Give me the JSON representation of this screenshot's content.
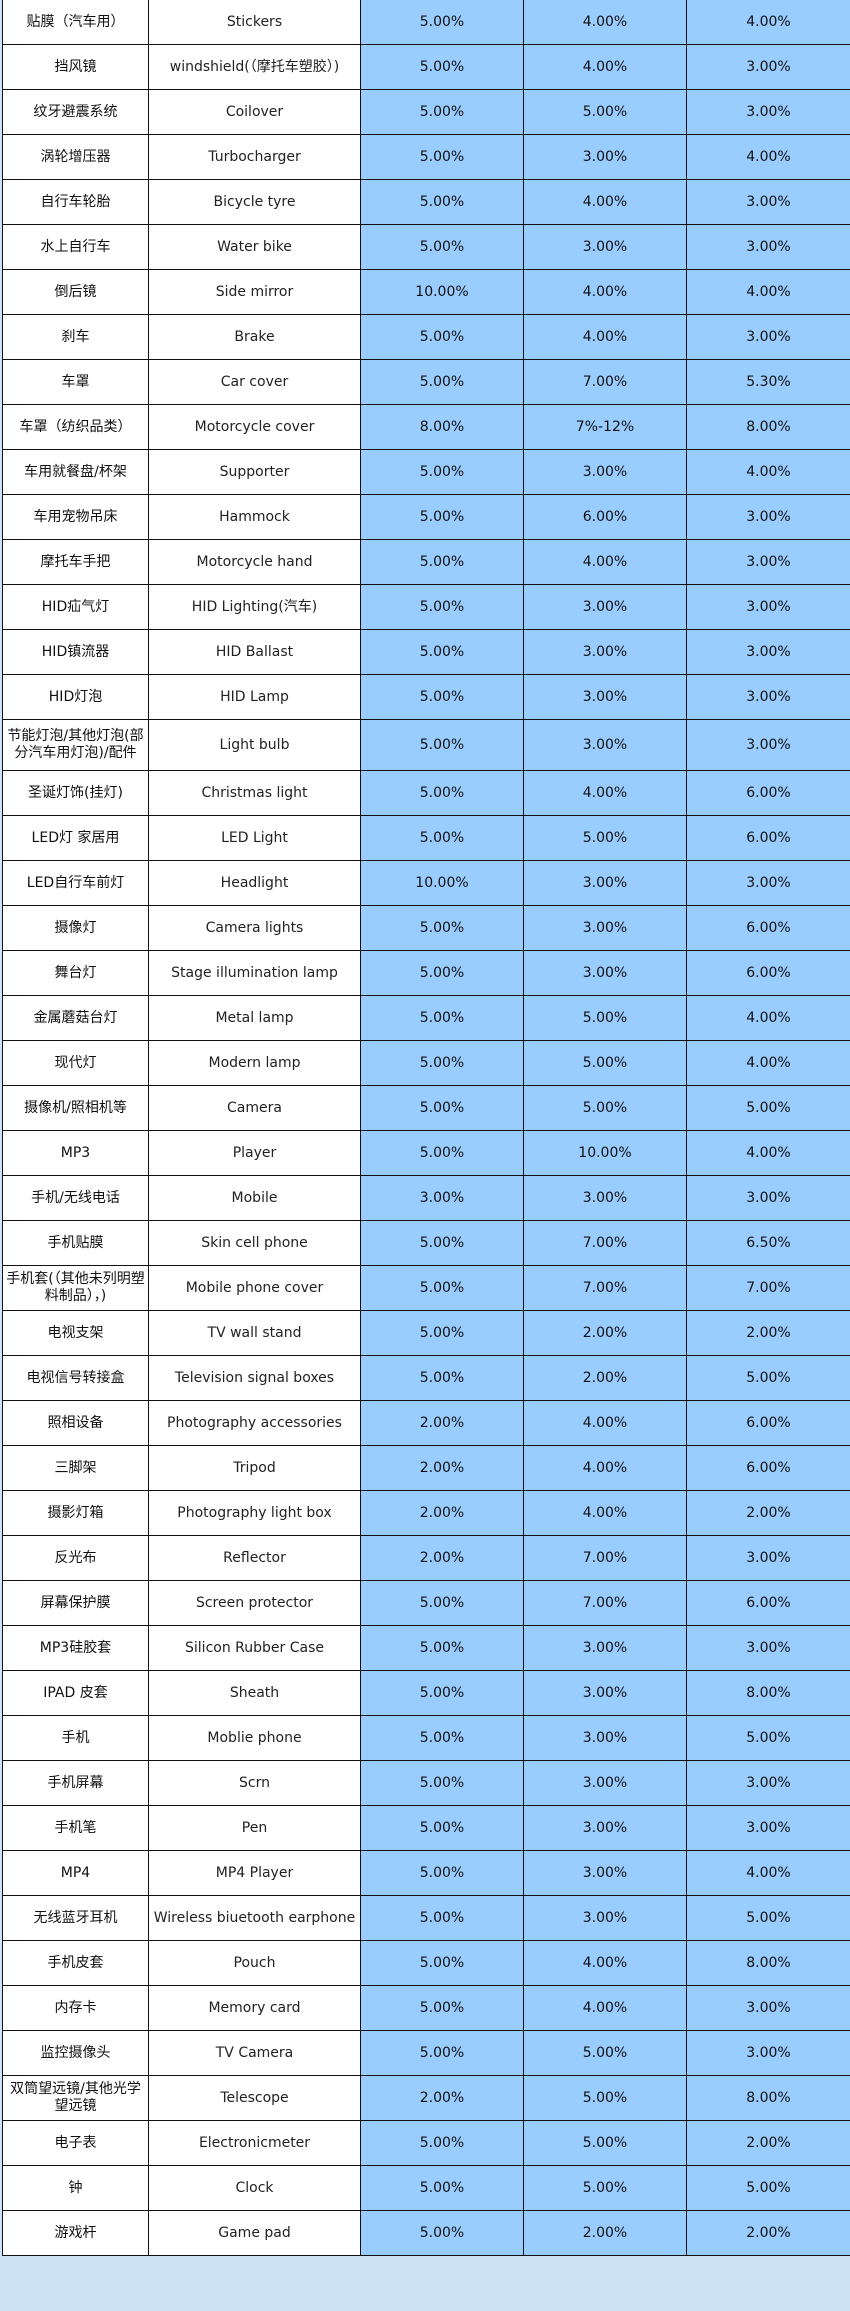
{
  "colors": {
    "rate_cell_bg": "#99ccff",
    "text_cell_bg": "#ffffff"
  },
  "rows": [
    {
      "cn": "贴膜（汽车用）",
      "en": "Stickers",
      "r1": "5.00%",
      "r2": "4.00%",
      "r3": "4.00%"
    },
    {
      "cn": "挡风镜",
      "en": "windshield(（摩托车塑胶）)",
      "r1": "5.00%",
      "r2": "4.00%",
      "r3": "3.00%"
    },
    {
      "cn": "纹牙避震系统",
      "en": "Coilover",
      "r1": "5.00%",
      "r2": "5.00%",
      "r3": "3.00%"
    },
    {
      "cn": "涡轮增压器",
      "en": "Turbocharger",
      "r1": "5.00%",
      "r2": "3.00%",
      "r3": "4.00%"
    },
    {
      "cn": "自行车轮胎",
      "en": "Bicycle tyre",
      "r1": "5.00%",
      "r2": "4.00%",
      "r3": "3.00%"
    },
    {
      "cn": "水上自行车",
      "en": "Water bike",
      "r1": "5.00%",
      "r2": "3.00%",
      "r3": "3.00%"
    },
    {
      "cn": "倒后镜",
      "en": "Side mirror",
      "r1": "10.00%",
      "r2": "4.00%",
      "r3": "4.00%"
    },
    {
      "cn": "刹车",
      "en": "Brake",
      "r1": "5.00%",
      "r2": "4.00%",
      "r3": "3.00%"
    },
    {
      "cn": "车罩",
      "en": "Car cover",
      "r1": "5.00%",
      "r2": "7.00%",
      "r3": "5.30%"
    },
    {
      "cn": "车罩（纺织品类）",
      "en": "Motorcycle cover",
      "r1": "8.00%",
      "r2": "7%-12%",
      "r3": "8.00%"
    },
    {
      "cn": "车用就餐盘/杯架",
      "en": "Supporter",
      "r1": "5.00%",
      "r2": "3.00%",
      "r3": "4.00%"
    },
    {
      "cn": "车用宠物吊床",
      "en": "Hammock",
      "r1": "5.00%",
      "r2": "6.00%",
      "r3": "3.00%"
    },
    {
      "cn": "摩托车手把",
      "en": "Motorcycle hand",
      "r1": "5.00%",
      "r2": "4.00%",
      "r3": "3.00%"
    },
    {
      "cn": "HID疝气灯",
      "en": "HID Lighting(汽车)",
      "r1": "5.00%",
      "r2": "3.00%",
      "r3": "3.00%"
    },
    {
      "cn": "HID镇流器",
      "en": "HID Ballast",
      "r1": "5.00%",
      "r2": "3.00%",
      "r3": "3.00%"
    },
    {
      "cn": "HID灯泡",
      "en": "HID Lamp",
      "r1": "5.00%",
      "r2": "3.00%",
      "r3": "3.00%"
    },
    {
      "cn": "节能灯泡/其他灯泡(部分汽车用灯泡)/配件",
      "en": "Light bulb",
      "r1": "5.00%",
      "r2": "3.00%",
      "r3": "3.00%",
      "tall": true
    },
    {
      "cn": "圣诞灯饰(挂灯)",
      "en": "Christmas light",
      "r1": "5.00%",
      "r2": "4.00%",
      "r3": "6.00%"
    },
    {
      "cn": "LED灯 家居用",
      "en": "LED Light",
      "r1": "5.00%",
      "r2": "5.00%",
      "r3": "6.00%"
    },
    {
      "cn": "LED自行车前灯",
      "en": "Headlight",
      "r1": "10.00%",
      "r2": "3.00%",
      "r3": "3.00%"
    },
    {
      "cn": "摄像灯",
      "en": "Camera lights",
      "r1": "5.00%",
      "r2": "3.00%",
      "r3": "6.00%"
    },
    {
      "cn": "舞台灯",
      "en": "Stage illumination lamp",
      "r1": "5.00%",
      "r2": "3.00%",
      "r3": "6.00%"
    },
    {
      "cn": "金属蘑菇台灯",
      "en": "Metal lamp",
      "r1": "5.00%",
      "r2": "5.00%",
      "r3": "4.00%"
    },
    {
      "cn": "现代灯",
      "en": "Modern lamp",
      "r1": "5.00%",
      "r2": "5.00%",
      "r3": "4.00%"
    },
    {
      "cn": "摄像机/照相机等",
      "en": "Camera",
      "r1": "5.00%",
      "r2": "5.00%",
      "r3": "5.00%"
    },
    {
      "cn": "MP3",
      "en": "Player",
      "r1": "5.00%",
      "r2": "10.00%",
      "r3": "4.00%"
    },
    {
      "cn": "手机/无线电话",
      "en": "Mobile",
      "r1": "3.00%",
      "r2": "3.00%",
      "r3": "3.00%"
    },
    {
      "cn": "手机贴膜",
      "en": "Skin cell phone",
      "r1": "5.00%",
      "r2": "7.00%",
      "r3": "6.50%"
    },
    {
      "cn": "手机套(（其他未列明塑料制品），)",
      "en": "Mobile phone cover",
      "r1": "5.00%",
      "r2": "7.00%",
      "r3": "7.00%"
    },
    {
      "cn": "电视支架",
      "en": "TV wall stand",
      "r1": "5.00%",
      "r2": "2.00%",
      "r3": "2.00%"
    },
    {
      "cn": "电视信号转接盒",
      "en": "Television signal boxes",
      "r1": "5.00%",
      "r2": "2.00%",
      "r3": "5.00%"
    },
    {
      "cn": "照相设备",
      "en": "Photography accessories",
      "r1": "2.00%",
      "r2": "4.00%",
      "r3": "6.00%"
    },
    {
      "cn": "三脚架",
      "en": "Tripod",
      "r1": "2.00%",
      "r2": "4.00%",
      "r3": "6.00%"
    },
    {
      "cn": "摄影灯箱",
      "en": "Photography light box",
      "r1": "2.00%",
      "r2": "4.00%",
      "r3": "2.00%"
    },
    {
      "cn": "反光布",
      "en": "Reflector",
      "r1": "2.00%",
      "r2": "7.00%",
      "r3": "3.00%"
    },
    {
      "cn": "屏幕保护膜",
      "en": "Screen protector",
      "r1": "5.00%",
      "r2": "7.00%",
      "r3": "6.00%"
    },
    {
      "cn": "MP3硅胶套",
      "en": "Silicon Rubber Case",
      "r1": "5.00%",
      "r2": "3.00%",
      "r3": "3.00%"
    },
    {
      "cn": "IPAD 皮套",
      "en": "Sheath",
      "r1": "5.00%",
      "r2": "3.00%",
      "r3": "8.00%"
    },
    {
      "cn": "手机",
      "en": "Moblie phone",
      "r1": "5.00%",
      "r2": "3.00%",
      "r3": "5.00%"
    },
    {
      "cn": "手机屏幕",
      "en": "Scrn",
      "r1": "5.00%",
      "r2": "3.00%",
      "r3": "3.00%"
    },
    {
      "cn": "手机笔",
      "en": "Pen",
      "r1": "5.00%",
      "r2": "3.00%",
      "r3": "3.00%"
    },
    {
      "cn": "MP4",
      "en": "MP4 Player",
      "r1": "5.00%",
      "r2": "3.00%",
      "r3": "4.00%"
    },
    {
      "cn": "无线蓝牙耳机",
      "en": "Wireless biuetooth earphone",
      "r1": "5.00%",
      "r2": "3.00%",
      "r3": "5.00%"
    },
    {
      "cn": "手机皮套",
      "en": "Pouch",
      "r1": "5.00%",
      "r2": "4.00%",
      "r3": "8.00%"
    },
    {
      "cn": "内存卡",
      "en": "Memory card",
      "r1": "5.00%",
      "r2": "4.00%",
      "r3": "3.00%"
    },
    {
      "cn": "监控摄像头",
      "en": "TV Camera",
      "r1": "5.00%",
      "r2": "5.00%",
      "r3": "3.00%"
    },
    {
      "cn": "双筒望远镜/其他光学望远镜",
      "en": "Telescope",
      "r1": "2.00%",
      "r2": "5.00%",
      "r3": "8.00%"
    },
    {
      "cn": "电子表",
      "en": "Electronicmeter",
      "r1": "5.00%",
      "r2": "5.00%",
      "r3": "2.00%"
    },
    {
      "cn": "钟",
      "en": "Clock",
      "r1": "5.00%",
      "r2": "5.00%",
      "r3": "5.00%"
    },
    {
      "cn": "游戏杆",
      "en": "Game pad",
      "r1": "5.00%",
      "r2": "2.00%",
      "r3": "2.00%"
    }
  ]
}
